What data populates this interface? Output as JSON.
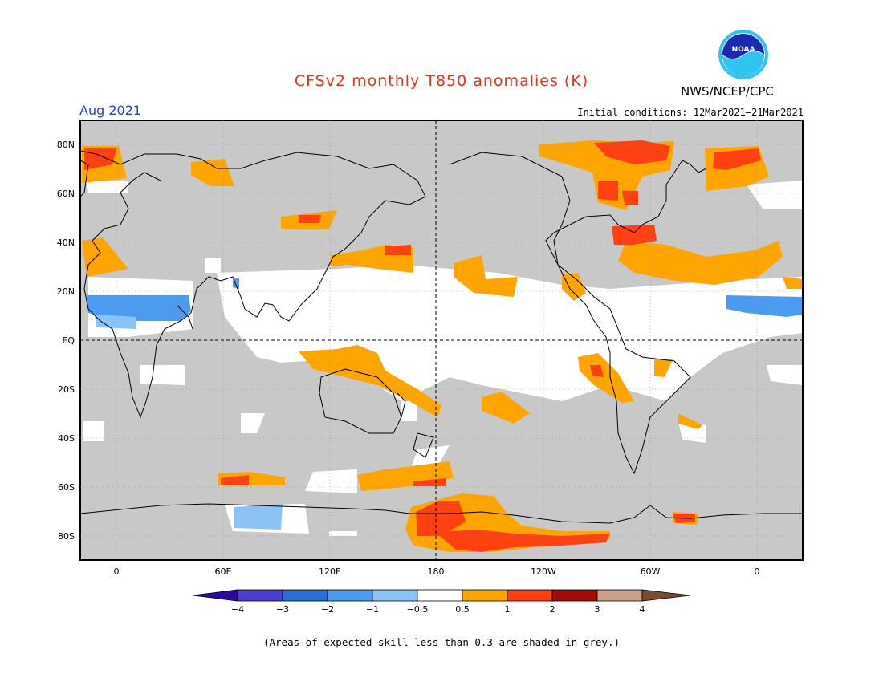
{
  "header": {
    "title": "CFSv2 monthly T850 anomalies (K)",
    "valid_month": "Aug 2021",
    "initial_conditions": "Initial conditions: 12Mar2021–21Mar2021",
    "agency": "NWS/NCEP/CPC",
    "logo_text": "NOAA"
  },
  "axes": {
    "lat_labels": [
      "80N",
      "60N",
      "40N",
      "20N",
      "EQ",
      "20S",
      "40S",
      "60S",
      "80S"
    ],
    "lon_labels": [
      "0",
      "60E",
      "120E",
      "180",
      "120W",
      "60W",
      "0"
    ]
  },
  "colorbar": {
    "labels": [
      "−4",
      "−3",
      "−2",
      "−1",
      "−0.5",
      "0.5",
      "1",
      "2",
      "3",
      "4"
    ],
    "colors": [
      "#2a0a9e",
      "#4a3fd0",
      "#2a6fd6",
      "#4d9bf0",
      "#8cc3f7",
      "#ffffff",
      "#ffa500",
      "#ff4010",
      "#a50a0a",
      "#c9a08a",
      "#7a4a32"
    ]
  },
  "footnote": "(Areas of expected skill less than 0.3 are shaded in grey.)",
  "colors": {
    "skill_grey": "#c8c8c8",
    "neutral": "#ffffff",
    "warm_1": "#ffa500",
    "warm_2": "#ff4010",
    "cool_1": "#8cc3f7",
    "cool_2": "#4d9bf0"
  }
}
